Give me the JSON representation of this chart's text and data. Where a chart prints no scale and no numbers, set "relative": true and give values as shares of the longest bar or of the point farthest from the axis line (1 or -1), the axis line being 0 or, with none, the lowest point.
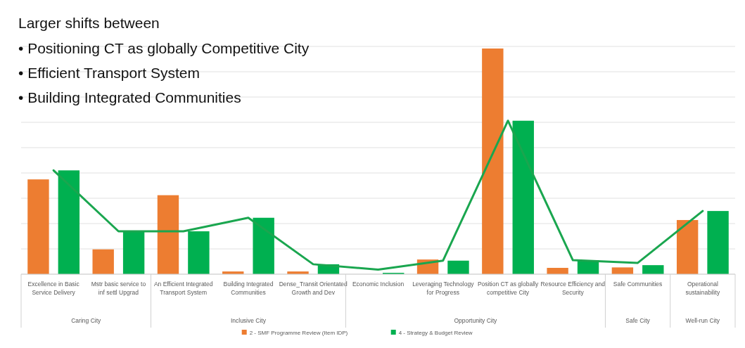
{
  "chart_data": {
    "type": "bar",
    "relative": true,
    "title": "Larger shifts between",
    "categories": [
      "Excellence in Basic Service Delivery",
      "Mstr basic service to inf settl Upgrad",
      "An Efficient Integrated Transport System",
      "Building Integrated Communities",
      "Dense_Transit Orientated Growth and Dev",
      "Economic Inclusion",
      "Leveraging Technology for Progress",
      "Position CT as globally competitive City",
      "Resource Efficiency and Security",
      "Safe Communities",
      "Operational sustainability"
    ],
    "series": [
      {
        "name": "2 - SMF Programme Review (Item IDP)",
        "color": "#ed7d31",
        "values": [
          0.42,
          0.11,
          0.35,
          0.012,
          0.012,
          0,
          0.065,
          1,
          0.028,
          0.03,
          0.24
        ]
      },
      {
        "name": "4 - Strategy & Budget Review",
        "color": "#00b050",
        "values": [
          0.46,
          0.19,
          0.19,
          0.25,
          0.044,
          0.006,
          0.06,
          0.68,
          0.062,
          0.04,
          0.28
        ]
      },
      {
        "type": "line",
        "color": "#1aa64f",
        "values": [
          0.46,
          0.19,
          0.19,
          0.25,
          0.044,
          0.02,
          0.06,
          0.68,
          0.062,
          0.05,
          0.28
        ]
      }
    ],
    "annotations": [
      "• Positioning CT as globally Competitive City",
      "• Efficient Transport System",
      "• Building Integrated Communities",
      "Caring City",
      "Inclusive City",
      "Opportunity City",
      "Safe City",
      "Well-run City"
    ],
    "grid": true,
    "legend": "bottom"
  }
}
